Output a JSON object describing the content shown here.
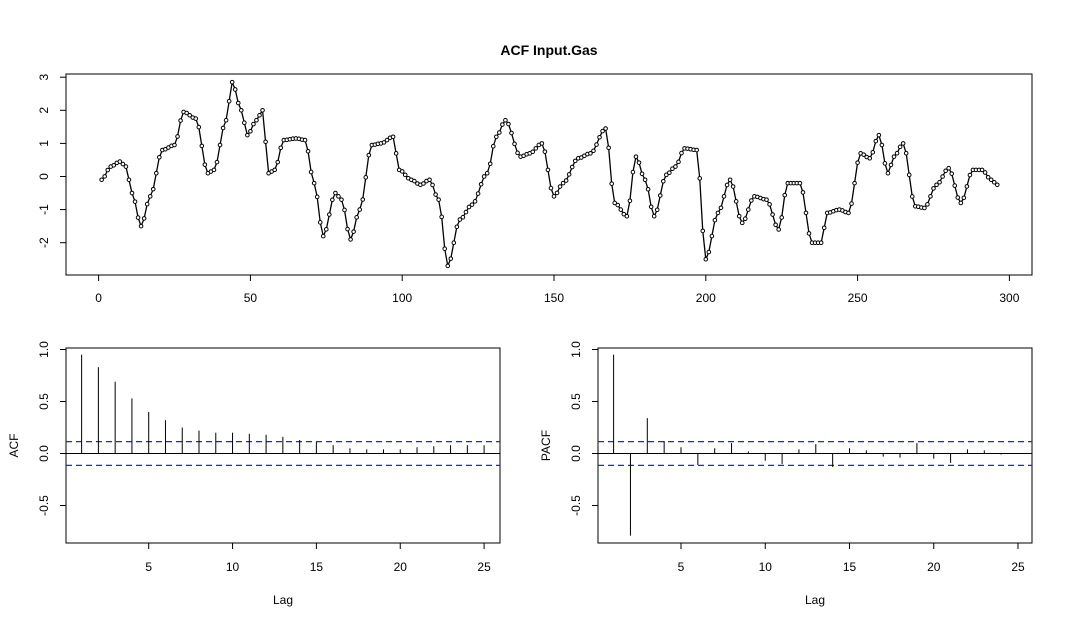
{
  "title": "ACF Input.Gas",
  "colors": {
    "series": "#000000",
    "ci": "#2424d8",
    "background": "#ffffff"
  },
  "chart_data": [
    {
      "type": "line",
      "title": "ACF Input.Gas",
      "xlabel": "",
      "ylabel": "",
      "xlim": [
        1,
        296
      ],
      "ylim": [
        -2.9,
        3.1
      ],
      "xticks": [
        0,
        50,
        100,
        150,
        200,
        250,
        300
      ],
      "yticks": [
        -2,
        -1,
        0,
        1,
        2,
        3
      ],
      "keyframes_x": [
        1,
        4,
        7,
        9,
        11,
        14,
        17,
        21,
        25,
        28,
        32,
        36,
        38,
        42,
        44,
        47,
        49,
        52,
        54,
        56,
        58,
        61,
        65,
        68,
        71,
        74,
        78,
        80,
        83,
        86,
        90,
        93,
        97,
        99,
        103,
        106,
        109,
        112,
        115,
        119,
        123,
        128,
        131,
        134,
        139,
        142,
        146,
        150,
        153,
        158,
        162,
        167,
        170,
        174,
        177,
        180,
        183,
        187,
        190,
        193,
        197,
        200,
        204,
        208,
        212,
        216,
        220,
        224,
        227,
        231,
        235,
        238,
        240,
        244,
        247,
        251,
        254,
        257,
        260,
        262,
        265,
        269,
        272,
        276,
        280,
        284,
        288,
        291,
        294,
        296
      ],
      "keyframes_y": [
        -0.1,
        0.3,
        0.45,
        0.3,
        -0.5,
        -1.5,
        -0.6,
        0.8,
        0.95,
        1.95,
        1.75,
        0.1,
        0.2,
        1.7,
        2.85,
        2.0,
        1.25,
        1.7,
        2.0,
        0.1,
        0.2,
        1.1,
        1.15,
        1.1,
        -0.2,
        -1.8,
        -0.5,
        -0.7,
        -1.9,
        -1.0,
        0.95,
        1.0,
        1.2,
        0.2,
        -0.1,
        -0.25,
        -0.1,
        -0.7,
        -2.7,
        -1.3,
        -0.85,
        0.1,
        1.2,
        1.7,
        0.6,
        0.7,
        1.0,
        -0.6,
        -0.2,
        0.55,
        0.7,
        1.45,
        -0.8,
        -1.2,
        0.6,
        -0.1,
        -1.2,
        0.05,
        0.3,
        0.85,
        0.8,
        -2.5,
        -1.1,
        -0.1,
        -1.4,
        -0.6,
        -0.7,
        -1.6,
        -0.2,
        -0.2,
        -2.0,
        -2.0,
        -1.1,
        -1.0,
        -1.1,
        0.7,
        0.55,
        1.25,
        0.1,
        0.6,
        1.0,
        -0.9,
        -0.95,
        -0.25,
        0.25,
        -0.8,
        0.2,
        0.2,
        -0.1,
        -0.25
      ]
    },
    {
      "type": "bar",
      "title": "",
      "xlabel": "Lag",
      "ylabel": "ACF",
      "xlim": [
        0,
        25
      ],
      "ylim": [
        -0.85,
        1.0
      ],
      "xticks": [
        5,
        10,
        15,
        20,
        25
      ],
      "yticks": [
        -0.5,
        0.0,
        0.5,
        1.0
      ],
      "ytick_labels": [
        "-0.5",
        "0.0",
        "0.5",
        "1.0"
      ],
      "ci": 0.114,
      "lags": [
        1,
        2,
        3,
        4,
        5,
        6,
        7,
        8,
        9,
        10,
        11,
        12,
        13,
        14,
        15,
        16,
        17,
        18,
        19,
        20,
        21,
        22,
        23,
        24,
        25
      ],
      "values": [
        0.95,
        0.83,
        0.69,
        0.53,
        0.4,
        0.32,
        0.25,
        0.22,
        0.2,
        0.2,
        0.19,
        0.18,
        0.16,
        0.13,
        0.11,
        0.08,
        0.05,
        0.04,
        0.04,
        0.04,
        0.06,
        0.07,
        0.08,
        0.08,
        0.08
      ]
    },
    {
      "type": "bar",
      "title": "",
      "xlabel": "Lag",
      "ylabel": "PACF",
      "xlim": [
        0,
        25
      ],
      "ylim": [
        -0.85,
        1.0
      ],
      "xticks": [
        5,
        10,
        15,
        20,
        25
      ],
      "yticks": [
        -0.5,
        0.0,
        0.5,
        1.0
      ],
      "ytick_labels": [
        "-0.5",
        "0.0",
        "0.5",
        "1.0"
      ],
      "ci": 0.114,
      "lags": [
        1,
        2,
        3,
        4,
        5,
        6,
        7,
        8,
        9,
        10,
        11,
        12,
        13,
        14,
        15,
        16,
        17,
        18,
        19,
        20,
        21,
        22,
        23,
        24,
        25
      ],
      "values": [
        0.95,
        -0.79,
        0.34,
        0.12,
        0.06,
        -0.11,
        0.05,
        0.1,
        0.02,
        -0.07,
        -0.1,
        0.04,
        0.09,
        -0.13,
        0.05,
        0.03,
        -0.03,
        -0.04,
        0.1,
        -0.05,
        -0.09,
        0.04,
        0.03,
        -0.01,
        0.0
      ]
    }
  ]
}
